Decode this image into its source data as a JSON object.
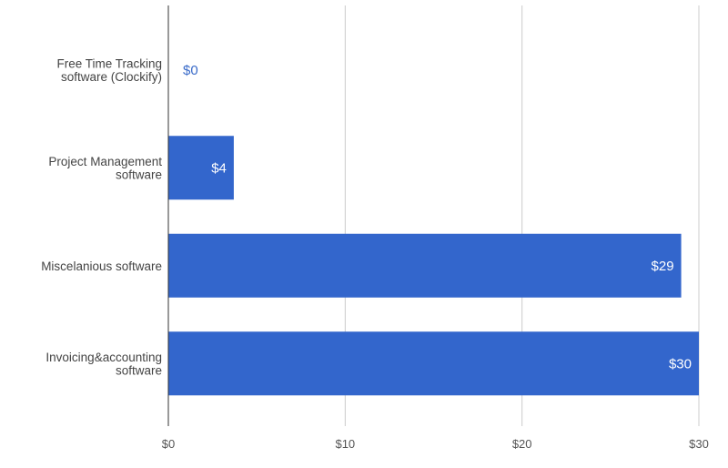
{
  "chart_data": {
    "type": "bar",
    "orientation": "horizontal",
    "categories": [
      [
        "Free Time Tracking",
        "software (Clockify)"
      ],
      [
        "Project Management",
        "software"
      ],
      [
        "Miscelanious software"
      ],
      [
        "Invoicing&accounting",
        "software"
      ]
    ],
    "values": [
      0,
      3.7,
      29,
      30
    ],
    "data_labels": [
      "$0",
      "$4",
      "$29",
      "$30"
    ],
    "x_ticks": [
      0,
      10,
      20,
      30
    ],
    "x_tick_labels": [
      "$0",
      "$10",
      "$20",
      "$30"
    ],
    "xlim": [
      0,
      30
    ],
    "title": "",
    "xlabel": "",
    "ylabel": "",
    "grid": true,
    "legend": "none",
    "colors": {
      "bar": "#3366cc",
      "grid": "#cccccc",
      "axis": "#333333"
    }
  }
}
